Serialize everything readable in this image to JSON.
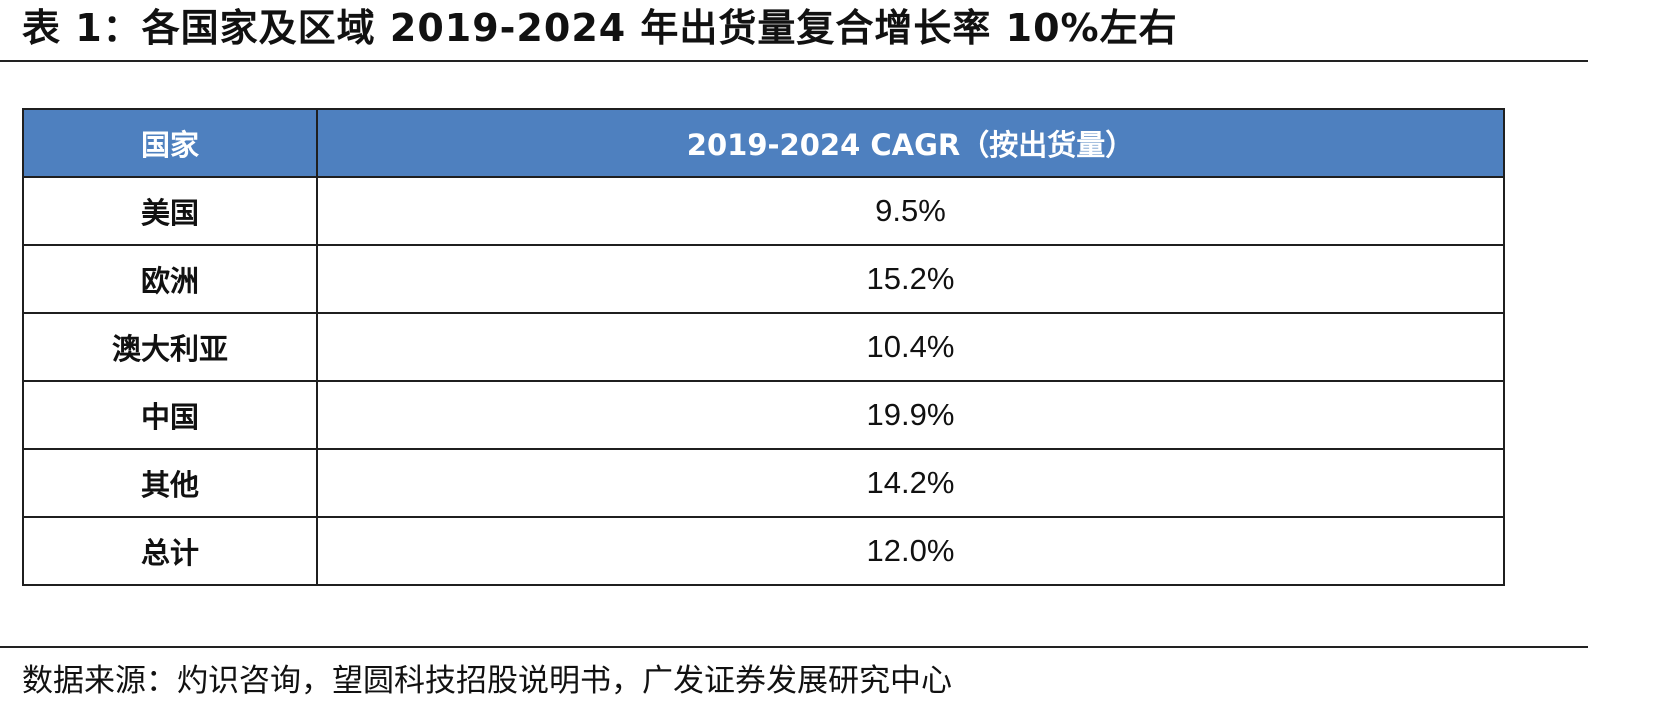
{
  "title": "表 1：各国家及区域 2019-2024 年出货量复合增长率 10%左右",
  "table": {
    "headers": [
      "国家",
      "2019-2024 CAGR（按出货量）"
    ],
    "rows": [
      {
        "country": "美国",
        "cagr": "9.5%"
      },
      {
        "country": "欧洲",
        "cagr": "15.2%"
      },
      {
        "country": "澳大利亚",
        "cagr": "10.4%"
      },
      {
        "country": "中国",
        "cagr": "19.9%"
      },
      {
        "country": "其他",
        "cagr": "14.2%"
      },
      {
        "country": "总计",
        "cagr": "12.0%"
      }
    ]
  },
  "source": "数据来源：灼识咨询，望圆科技招股说明书，广发证券发展研究中心"
}
